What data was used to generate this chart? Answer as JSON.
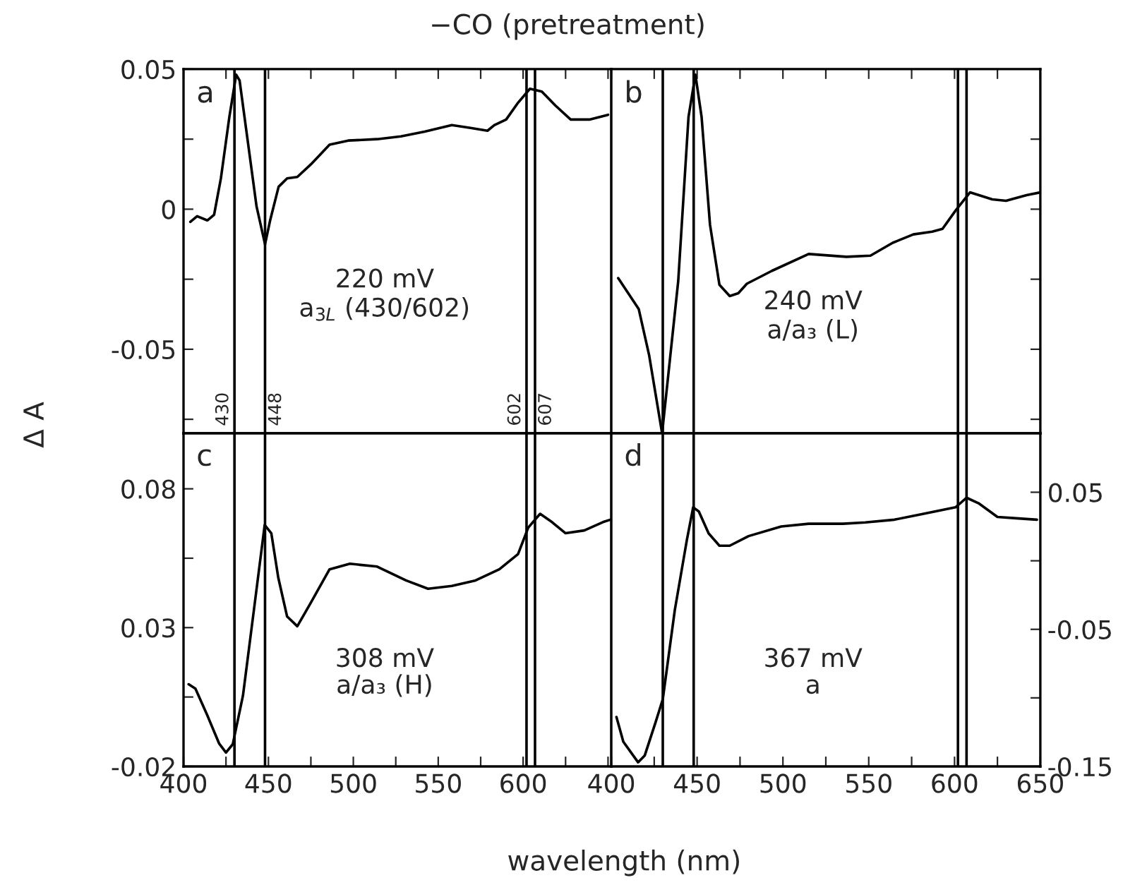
{
  "chart_data": [
    {
      "type": "line",
      "title": "−CO (pretreatment)",
      "xlabel": "wavelength (nm)",
      "ylabel": "Δ A",
      "annotations": [
        "a",
        "220 mV",
        "a$_{3L}$ (430/602)"
      ],
      "x": [
        404,
        408,
        414,
        418,
        422,
        427,
        431,
        433,
        437,
        443,
        448,
        451,
        456,
        461,
        467,
        475,
        486,
        497,
        514,
        528,
        542,
        558,
        569,
        579,
        583,
        590,
        597,
        604,
        611,
        619,
        628,
        639,
        650
      ],
      "series": [
        {
          "color": "#000000",
          "values": [
            -0.0045,
            -0.0025,
            -0.004,
            -0.002,
            0.011,
            0.033,
            0.048,
            0.046,
            0.028,
            0.001,
            -0.0125,
            -0.004,
            0.008,
            0.011,
            0.0115,
            0.016,
            0.023,
            0.0245,
            0.025,
            0.026,
            0.0277,
            0.03,
            0.029,
            0.028,
            0.03,
            0.032,
            0.038,
            0.043,
            0.042,
            0.037,
            0.032,
            0.032,
            0.0337
          ]
        }
      ],
      "xlim": [
        400,
        652
      ],
      "ylim": [
        -0.08,
        0.05
      ],
      "xticks": [
        400,
        425,
        450,
        475,
        500,
        525,
        550,
        575,
        600,
        625,
        650
      ],
      "yticks": [
        {
          "value": -0.075,
          "label": null
        },
        -0.05,
        {
          "value": -0.025,
          "label": null
        },
        0,
        {
          "value": 0.025,
          "label": null
        },
        0.05
      ],
      "ref_lines": [
        {
          "axis": "x",
          "value": 430,
          "label": "430"
        },
        {
          "axis": "x",
          "value": 448,
          "label": "448"
        },
        {
          "axis": "x",
          "value": 602,
          "label": "602"
        },
        {
          "axis": "x",
          "value": 607,
          "label": "607"
        }
      ],
      "tick_labels": "y",
      "grid": false,
      "legend": false,
      "marker": "none",
      "line_style": "solid"
    },
    {
      "type": "line",
      "annotations": [
        "b",
        "240 mV",
        "a/a₃ (L)"
      ],
      "x": [
        404,
        416,
        422,
        429.6,
        439,
        445,
        449,
        452.6,
        457.5,
        463,
        469,
        474,
        479,
        493.6,
        515,
        537,
        551,
        564,
        576,
        587,
        593,
        600.6,
        609,
        622,
        630,
        642,
        650
      ],
      "series": [
        {
          "color": "#000000",
          "values": [
            -0.0246,
            -0.0357,
            -0.052,
            -0.08,
            -0.0256,
            0.033,
            0.048,
            0.033,
            -0.0055,
            -0.027,
            -0.031,
            -0.03,
            -0.0266,
            -0.022,
            -0.016,
            -0.017,
            -0.0166,
            -0.012,
            -0.009,
            -0.008,
            -0.007,
            -0.0005,
            0.006,
            0.0035,
            0.003,
            0.005,
            0.006
          ]
        }
      ],
      "xlim": [
        400,
        650
      ],
      "ylim": [
        -0.08,
        0.05
      ],
      "xticks": [
        400,
        425,
        450,
        475,
        500,
        525,
        550,
        575,
        600,
        625,
        650
      ],
      "yticks": [
        {
          "value": -0.075,
          "label": null
        },
        -0.05,
        {
          "value": -0.025,
          "label": null
        },
        0,
        {
          "value": 0.025,
          "label": null
        },
        0.05
      ],
      "ref_lines": [
        {
          "axis": "x",
          "value": 430
        },
        {
          "axis": "x",
          "value": 448
        },
        {
          "axis": "x",
          "value": 602
        },
        {
          "axis": "x",
          "value": 607
        }
      ],
      "tick_labels": false,
      "grid": false,
      "legend": false,
      "marker": "none",
      "line_style": "solid"
    },
    {
      "type": "line",
      "annotations": [
        "c",
        "308 mV",
        "a/a₃ (H)"
      ],
      "x": [
        403,
        407,
        414,
        421,
        425,
        429,
        435,
        442,
        447.8,
        451.7,
        455.8,
        461,
        467,
        475,
        486,
        498,
        514,
        531,
        544,
        558,
        572,
        586,
        597,
        603,
        610,
        617,
        625,
        636,
        647,
        652
      ],
      "series": [
        {
          "color": "#000000",
          "values": [
            0.0096,
            0.008,
            -0.0016,
            -0.0118,
            -0.015,
            -0.012,
            0.0055,
            0.039,
            0.067,
            0.064,
            0.048,
            0.034,
            0.0305,
            0.039,
            0.051,
            0.053,
            0.052,
            0.047,
            0.044,
            0.045,
            0.047,
            0.051,
            0.0565,
            0.066,
            0.071,
            0.068,
            0.064,
            0.065,
            0.068,
            0.069
          ]
        }
      ],
      "xlim": [
        400,
        652
      ],
      "ylim": [
        -0.02,
        0.1
      ],
      "xticks": [
        400,
        {
          "value": 425,
          "label": null
        },
        450,
        {
          "value": 475,
          "label": null
        },
        500,
        {
          "value": 525,
          "label": null
        },
        550,
        {
          "value": 575,
          "label": null
        },
        600,
        {
          "value": 625,
          "label": null
        },
        {
          "value": 650,
          "label": null
        }
      ],
      "yticks": [
        -0.02,
        {
          "value": 0.005,
          "label": null
        },
        0.03,
        {
          "value": 0.055,
          "label": null
        },
        0.08
      ],
      "ref_lines": [
        {
          "axis": "x",
          "value": 430
        },
        {
          "axis": "x",
          "value": 448
        },
        {
          "axis": "x",
          "value": 602
        },
        {
          "axis": "x",
          "value": 607
        }
      ],
      "grid": false,
      "legend": false,
      "marker": "none",
      "line_style": "solid"
    },
    {
      "type": "line",
      "annotations": [
        "d",
        "367 mV",
        "a"
      ],
      "x": [
        403,
        407,
        415.6,
        419.5,
        426,
        430,
        437,
        444,
        447.7,
        451,
        456.7,
        463,
        469,
        480,
        499,
        515,
        535,
        548,
        565,
        581,
        600.6,
        607,
        614,
        625,
        636,
        648
      ],
      "series": [
        {
          "color": "#000000",
          "values": [
            -0.114,
            -0.132,
            -0.147,
            -0.142,
            -0.117,
            -0.101,
            -0.036,
            0.015,
            0.039,
            0.036,
            0.02,
            0.011,
            0.011,
            0.018,
            0.025,
            0.027,
            0.027,
            0.028,
            0.03,
            0.034,
            0.039,
            0.046,
            0.042,
            0.032,
            0.031,
            0.03
          ]
        }
      ],
      "xlim": [
        400,
        650
      ],
      "ylim": [
        -0.15,
        0.093
      ],
      "xticks": [
        400,
        {
          "value": 425,
          "label": null
        },
        450,
        {
          "value": 475,
          "label": null
        },
        500,
        {
          "value": 525,
          "label": null
        },
        550,
        {
          "value": 575,
          "label": null
        },
        600,
        {
          "value": 625,
          "label": null
        },
        650
      ],
      "yticks": [
        -0.15,
        {
          "value": -0.1,
          "label": null
        },
        -0.05,
        {
          "value": 0,
          "label": null
        },
        0.05
      ],
      "ref_lines": [
        {
          "axis": "x",
          "value": 430
        },
        {
          "axis": "x",
          "value": 448
        },
        {
          "axis": "x",
          "value": 602
        },
        {
          "axis": "x",
          "value": 607
        }
      ],
      "grid": false,
      "legend": false,
      "marker": "none",
      "line_style": "solid"
    }
  ]
}
